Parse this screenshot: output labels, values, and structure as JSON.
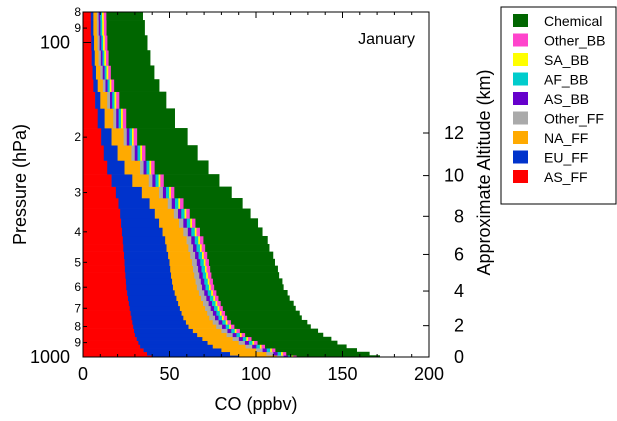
{
  "chart_data": {
    "type": "area",
    "subtitle": "January",
    "xlabel": "CO (ppbv)",
    "ylabel": "Pressure (hPa)",
    "y2label": "Approximate Altitude (km)",
    "xlim": [
      0,
      200
    ],
    "ylim_hpa": [
      80,
      1000
    ],
    "y_scale": "log",
    "grid": false,
    "legend_position": "outside-right",
    "x_ticks": [
      "0",
      "50",
      "100",
      "150",
      "200"
    ],
    "y_major_ticks": [
      {
        "label": "100",
        "value": 100
      },
      {
        "label": "1000",
        "value": 1000
      }
    ],
    "y_minor_ticks": [
      {
        "label": "8",
        "value": 80
      },
      {
        "label": "9",
        "value": 90
      },
      {
        "label": "2",
        "value": 200
      },
      {
        "label": "3",
        "value": 300
      },
      {
        "label": "4",
        "value": 400
      },
      {
        "label": "5",
        "value": 500
      },
      {
        "label": "6",
        "value": 600
      },
      {
        "label": "7",
        "value": 700
      },
      {
        "label": "8",
        "value": 800
      },
      {
        "label": "9",
        "value": 900
      }
    ],
    "y2_ticks": [
      {
        "label": "12",
        "value": 12
      },
      {
        "label": "10",
        "value": 10
      },
      {
        "label": "8",
        "value": 8
      },
      {
        "label": "6",
        "value": 6
      },
      {
        "label": "4",
        "value": 4
      },
      {
        "label": "2",
        "value": 2
      },
      {
        "label": "0",
        "value": 0
      }
    ],
    "altitude_pressure_map": [
      {
        "km": 0,
        "hpa": 1000
      },
      {
        "km": 2,
        "hpa": 795
      },
      {
        "km": 4,
        "hpa": 617
      },
      {
        "km": 6,
        "hpa": 472
      },
      {
        "km": 8,
        "hpa": 357
      },
      {
        "km": 10,
        "hpa": 265
      },
      {
        "km": 12,
        "hpa": 194
      }
    ],
    "pressure_levels": [
      1000,
      975,
      950,
      925,
      900,
      875,
      850,
      825,
      800,
      775,
      750,
      725,
      700,
      675,
      650,
      625,
      600,
      575,
      550,
      525,
      500,
      475,
      450,
      425,
      400,
      375,
      350,
      325,
      300,
      275,
      250,
      225,
      200,
      175,
      150,
      137,
      125,
      112,
      100,
      90,
      80
    ],
    "series": [
      {
        "name": "AS_FF",
        "color": "#ff0000",
        "values": [
          40,
          37,
          35,
          33,
          32,
          31,
          30,
          29.5,
          29,
          28.5,
          28,
          27.5,
          27,
          26.5,
          26,
          25.5,
          25,
          24.8,
          24.5,
          24.2,
          24,
          23.7,
          23.3,
          23,
          22.5,
          22,
          21.5,
          20.5,
          19,
          16.5,
          14,
          12,
          10.5,
          8.5,
          7,
          6,
          5.5,
          5,
          4.8,
          4.5,
          4.5
        ]
      },
      {
        "name": "EU_FF",
        "color": "#0033cc",
        "values": [
          50,
          48,
          45,
          42,
          40,
          38,
          36,
          34,
          32,
          31,
          30,
          29.5,
          29,
          28.5,
          28,
          27.5,
          27,
          26.7,
          26.4,
          26.2,
          26,
          25.5,
          25,
          24.5,
          23.5,
          22,
          20,
          18,
          15,
          12,
          10,
          8,
          6,
          4,
          3,
          2.5,
          2,
          1.8,
          1.6,
          1.5,
          1.5
        ]
      },
      {
        "name": "NA_FF",
        "color": "#ffaa00",
        "values": [
          22,
          21,
          20,
          19,
          18,
          17.5,
          17,
          16.5,
          16,
          15.5,
          15,
          14.8,
          14.6,
          14.4,
          14.2,
          14,
          13.8,
          13.6,
          13.4,
          13.2,
          13,
          12.8,
          12.6,
          12.4,
          12,
          11.5,
          11,
          10.5,
          10,
          9.5,
          9,
          8,
          7,
          5,
          4,
          3,
          2.5,
          2.2,
          2,
          2,
          2
        ]
      },
      {
        "name": "Other_FF",
        "color": "#aaaaaa",
        "values": [
          4,
          4,
          3.8,
          3.8,
          3.6,
          3.6,
          3.5,
          3.5,
          3.4,
          3.4,
          3.3,
          3.3,
          3.2,
          3.2,
          3.1,
          3.1,
          3,
          3,
          2.9,
          2.9,
          2.8,
          2.8,
          2.7,
          2.7,
          2.6,
          2.5,
          2.4,
          2.3,
          2.2,
          2.1,
          2,
          1.9,
          1.8,
          1.7,
          1.6,
          1.5,
          1.4,
          1.3,
          1.2,
          1.1,
          1
        ]
      },
      {
        "name": "AS_BB",
        "color": "#6600cc",
        "values": [
          2.5,
          2.5,
          2.4,
          2.4,
          2.3,
          2.3,
          2.2,
          2.2,
          2.1,
          2.1,
          2,
          2,
          2,
          2,
          2,
          2,
          2,
          2,
          2,
          2,
          2,
          2,
          2,
          2,
          2,
          2,
          1.9,
          1.9,
          1.8,
          1.8,
          1.7,
          1.6,
          1.5,
          1.4,
          1.3,
          1.2,
          1.1,
          1,
          1,
          1,
          1
        ]
      },
      {
        "name": "AF_BB",
        "color": "#00cccc",
        "values": [
          2,
          2,
          2,
          2,
          2,
          2,
          2,
          2,
          2,
          2,
          2,
          2,
          2,
          2,
          2,
          2,
          2,
          2,
          2,
          2,
          2,
          2,
          2,
          2,
          2,
          2,
          1.9,
          1.9,
          1.8,
          1.8,
          1.7,
          1.6,
          1.5,
          1.4,
          1.3,
          1.2,
          1.1,
          1,
          1,
          1,
          1
        ]
      },
      {
        "name": "SA_BB",
        "color": "#ffff00",
        "values": [
          1,
          1,
          1,
          1,
          1,
          1,
          1,
          1,
          1,
          1,
          1,
          1,
          1,
          1,
          1,
          1,
          1,
          1,
          1,
          1,
          1,
          1,
          1,
          1,
          1,
          1,
          1,
          1,
          1,
          1,
          1,
          1,
          1,
          1,
          1,
          1,
          1,
          1,
          1,
          1,
          1
        ]
      },
      {
        "name": "Other_BB",
        "color": "#ff44cc",
        "values": [
          2,
          2,
          2,
          2,
          2,
          2,
          2,
          2,
          2,
          2,
          2,
          2,
          2,
          2,
          2,
          2,
          2,
          2,
          2,
          2,
          2,
          2,
          2,
          2,
          2,
          2,
          2,
          2,
          2,
          2,
          2,
          2,
          2,
          2,
          1.8,
          1.6,
          1.5,
          1.5,
          1.5,
          1.5,
          1.5
        ]
      },
      {
        "name": "Chemical",
        "color": "#006600",
        "values": [
          48,
          48,
          47,
          47,
          46,
          46,
          45,
          45,
          44,
          44,
          43,
          43,
          42,
          42,
          41,
          41,
          40,
          40,
          39,
          39,
          38,
          38,
          37,
          37,
          36,
          36,
          35,
          34,
          33,
          32,
          31,
          30,
          29,
          28,
          27,
          26,
          25,
          24,
          23,
          22,
          21
        ]
      }
    ]
  }
}
